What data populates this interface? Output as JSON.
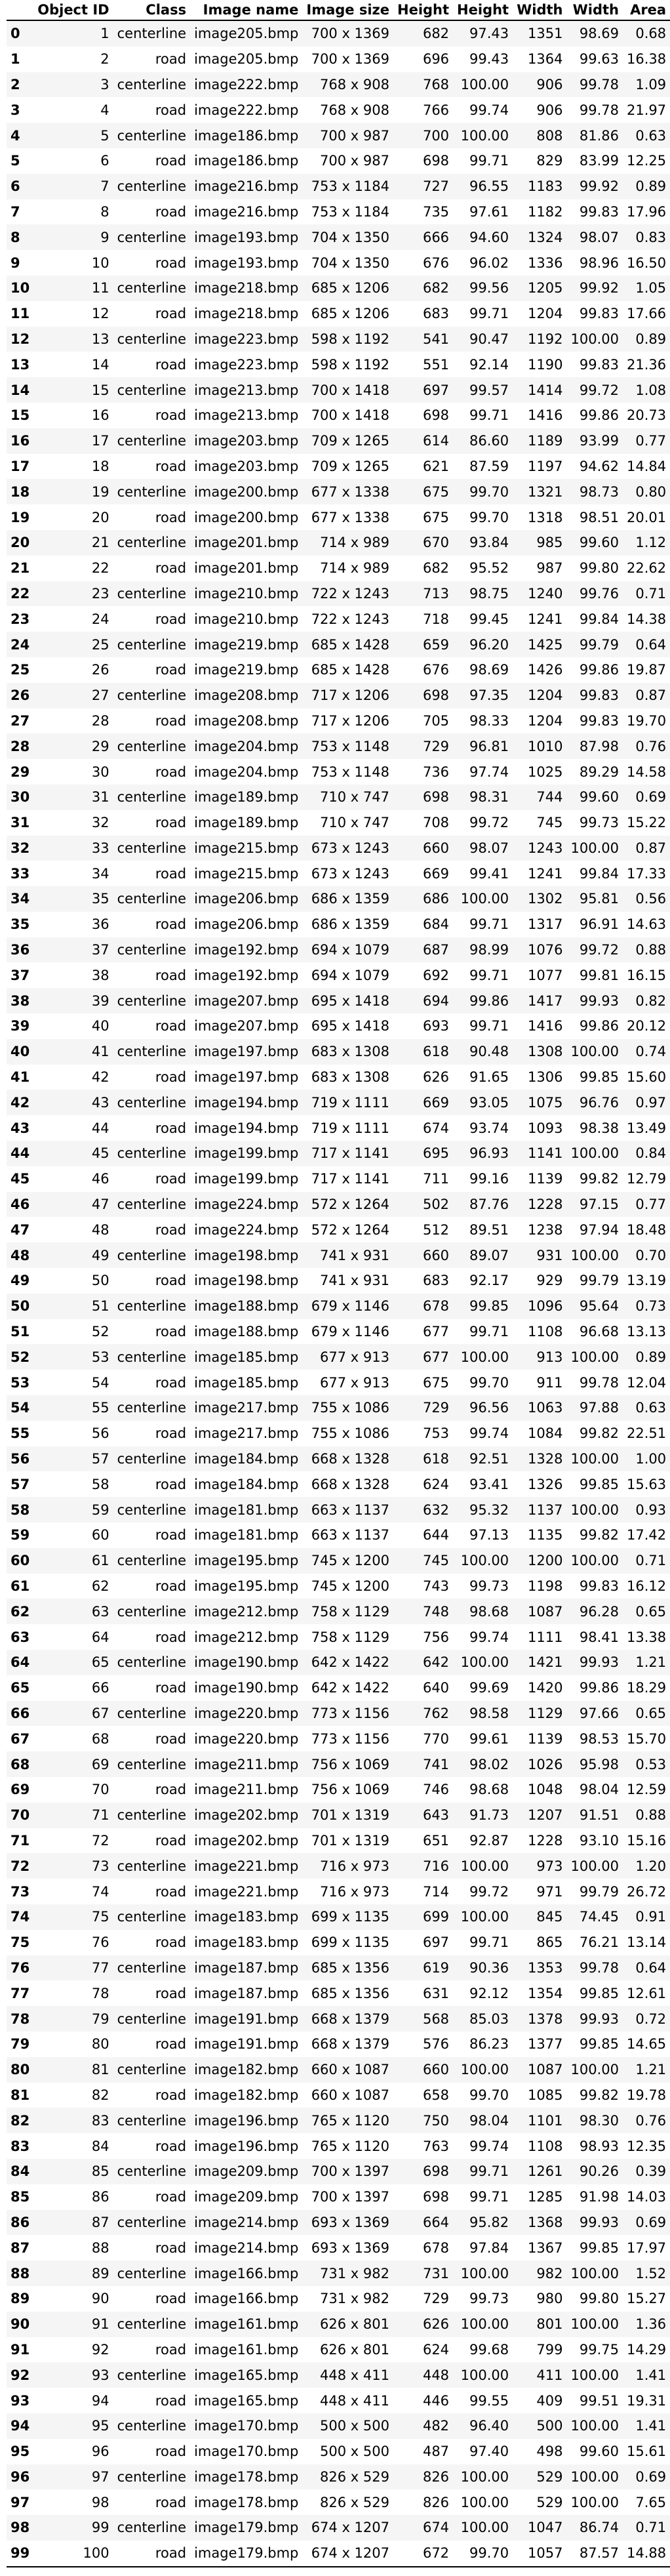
{
  "table": {
    "columns": [
      "",
      "Object ID",
      "Class",
      "Image name",
      "Image size",
      "Height",
      "Height",
      "Width",
      "Width",
      "Area"
    ],
    "rows": [
      [
        "0",
        "1",
        "centerline",
        "image205.bmp",
        "700 x 1369",
        "682",
        "97.43",
        "1351",
        "98.69",
        "0.68"
      ],
      [
        "1",
        "2",
        "road",
        "image205.bmp",
        "700 x 1369",
        "696",
        "99.43",
        "1364",
        "99.63",
        "16.38"
      ],
      [
        "2",
        "3",
        "centerline",
        "image222.bmp",
        "768 x 908",
        "768",
        "100.00",
        "906",
        "99.78",
        "1.09"
      ],
      [
        "3",
        "4",
        "road",
        "image222.bmp",
        "768 x 908",
        "766",
        "99.74",
        "906",
        "99.78",
        "21.97"
      ],
      [
        "4",
        "5",
        "centerline",
        "image186.bmp",
        "700 x 987",
        "700",
        "100.00",
        "808",
        "81.86",
        "0.63"
      ],
      [
        "5",
        "6",
        "road",
        "image186.bmp",
        "700 x 987",
        "698",
        "99.71",
        "829",
        "83.99",
        "12.25"
      ],
      [
        "6",
        "7",
        "centerline",
        "image216.bmp",
        "753 x 1184",
        "727",
        "96.55",
        "1183",
        "99.92",
        "0.89"
      ],
      [
        "7",
        "8",
        "road",
        "image216.bmp",
        "753 x 1184",
        "735",
        "97.61",
        "1182",
        "99.83",
        "17.96"
      ],
      [
        "8",
        "9",
        "centerline",
        "image193.bmp",
        "704 x 1350",
        "666",
        "94.60",
        "1324",
        "98.07",
        "0.83"
      ],
      [
        "9",
        "10",
        "road",
        "image193.bmp",
        "704 x 1350",
        "676",
        "96.02",
        "1336",
        "98.96",
        "16.50"
      ],
      [
        "10",
        "11",
        "centerline",
        "image218.bmp",
        "685 x 1206",
        "682",
        "99.56",
        "1205",
        "99.92",
        "1.05"
      ],
      [
        "11",
        "12",
        "road",
        "image218.bmp",
        "685 x 1206",
        "683",
        "99.71",
        "1204",
        "99.83",
        "17.66"
      ],
      [
        "12",
        "13",
        "centerline",
        "image223.bmp",
        "598 x 1192",
        "541",
        "90.47",
        "1192",
        "100.00",
        "0.89"
      ],
      [
        "13",
        "14",
        "road",
        "image223.bmp",
        "598 x 1192",
        "551",
        "92.14",
        "1190",
        "99.83",
        "21.36"
      ],
      [
        "14",
        "15",
        "centerline",
        "image213.bmp",
        "700 x 1418",
        "697",
        "99.57",
        "1414",
        "99.72",
        "1.08"
      ],
      [
        "15",
        "16",
        "road",
        "image213.bmp",
        "700 x 1418",
        "698",
        "99.71",
        "1416",
        "99.86",
        "20.73"
      ],
      [
        "16",
        "17",
        "centerline",
        "image203.bmp",
        "709 x 1265",
        "614",
        "86.60",
        "1189",
        "93.99",
        "0.77"
      ],
      [
        "17",
        "18",
        "road",
        "image203.bmp",
        "709 x 1265",
        "621",
        "87.59",
        "1197",
        "94.62",
        "14.84"
      ],
      [
        "18",
        "19",
        "centerline",
        "image200.bmp",
        "677 x 1338",
        "675",
        "99.70",
        "1321",
        "98.73",
        "0.80"
      ],
      [
        "19",
        "20",
        "road",
        "image200.bmp",
        "677 x 1338",
        "675",
        "99.70",
        "1318",
        "98.51",
        "20.01"
      ],
      [
        "20",
        "21",
        "centerline",
        "image201.bmp",
        "714 x 989",
        "670",
        "93.84",
        "985",
        "99.60",
        "1.12"
      ],
      [
        "21",
        "22",
        "road",
        "image201.bmp",
        "714 x 989",
        "682",
        "95.52",
        "987",
        "99.80",
        "22.62"
      ],
      [
        "22",
        "23",
        "centerline",
        "image210.bmp",
        "722 x 1243",
        "713",
        "98.75",
        "1240",
        "99.76",
        "0.71"
      ],
      [
        "23",
        "24",
        "road",
        "image210.bmp",
        "722 x 1243",
        "718",
        "99.45",
        "1241",
        "99.84",
        "14.38"
      ],
      [
        "24",
        "25",
        "centerline",
        "image219.bmp",
        "685 x 1428",
        "659",
        "96.20",
        "1425",
        "99.79",
        "0.64"
      ],
      [
        "25",
        "26",
        "road",
        "image219.bmp",
        "685 x 1428",
        "676",
        "98.69",
        "1426",
        "99.86",
        "19.87"
      ],
      [
        "26",
        "27",
        "centerline",
        "image208.bmp",
        "717 x 1206",
        "698",
        "97.35",
        "1204",
        "99.83",
        "0.87"
      ],
      [
        "27",
        "28",
        "road",
        "image208.bmp",
        "717 x 1206",
        "705",
        "98.33",
        "1204",
        "99.83",
        "19.70"
      ],
      [
        "28",
        "29",
        "centerline",
        "image204.bmp",
        "753 x 1148",
        "729",
        "96.81",
        "1010",
        "87.98",
        "0.76"
      ],
      [
        "29",
        "30",
        "road",
        "image204.bmp",
        "753 x 1148",
        "736",
        "97.74",
        "1025",
        "89.29",
        "14.58"
      ],
      [
        "30",
        "31",
        "centerline",
        "image189.bmp",
        "710 x 747",
        "698",
        "98.31",
        "744",
        "99.60",
        "0.69"
      ],
      [
        "31",
        "32",
        "road",
        "image189.bmp",
        "710 x 747",
        "708",
        "99.72",
        "745",
        "99.73",
        "15.22"
      ],
      [
        "32",
        "33",
        "centerline",
        "image215.bmp",
        "673 x 1243",
        "660",
        "98.07",
        "1243",
        "100.00",
        "0.87"
      ],
      [
        "33",
        "34",
        "road",
        "image215.bmp",
        "673 x 1243",
        "669",
        "99.41",
        "1241",
        "99.84",
        "17.33"
      ],
      [
        "34",
        "35",
        "centerline",
        "image206.bmp",
        "686 x 1359",
        "686",
        "100.00",
        "1302",
        "95.81",
        "0.56"
      ],
      [
        "35",
        "36",
        "road",
        "image206.bmp",
        "686 x 1359",
        "684",
        "99.71",
        "1317",
        "96.91",
        "14.63"
      ],
      [
        "36",
        "37",
        "centerline",
        "image192.bmp",
        "694 x 1079",
        "687",
        "98.99",
        "1076",
        "99.72",
        "0.88"
      ],
      [
        "37",
        "38",
        "road",
        "image192.bmp",
        "694 x 1079",
        "692",
        "99.71",
        "1077",
        "99.81",
        "16.15"
      ],
      [
        "38",
        "39",
        "centerline",
        "image207.bmp",
        "695 x 1418",
        "694",
        "99.86",
        "1417",
        "99.93",
        "0.82"
      ],
      [
        "39",
        "40",
        "road",
        "image207.bmp",
        "695 x 1418",
        "693",
        "99.71",
        "1416",
        "99.86",
        "20.12"
      ],
      [
        "40",
        "41",
        "centerline",
        "image197.bmp",
        "683 x 1308",
        "618",
        "90.48",
        "1308",
        "100.00",
        "0.74"
      ],
      [
        "41",
        "42",
        "road",
        "image197.bmp",
        "683 x 1308",
        "626",
        "91.65",
        "1306",
        "99.85",
        "15.60"
      ],
      [
        "42",
        "43",
        "centerline",
        "image194.bmp",
        "719 x 1111",
        "669",
        "93.05",
        "1075",
        "96.76",
        "0.97"
      ],
      [
        "43",
        "44",
        "road",
        "image194.bmp",
        "719 x 1111",
        "674",
        "93.74",
        "1093",
        "98.38",
        "13.49"
      ],
      [
        "44",
        "45",
        "centerline",
        "image199.bmp",
        "717 x 1141",
        "695",
        "96.93",
        "1141",
        "100.00",
        "0.84"
      ],
      [
        "45",
        "46",
        "road",
        "image199.bmp",
        "717 x 1141",
        "711",
        "99.16",
        "1139",
        "99.82",
        "12.79"
      ],
      [
        "46",
        "47",
        "centerline",
        "image224.bmp",
        "572 x 1264",
        "502",
        "87.76",
        "1228",
        "97.15",
        "0.77"
      ],
      [
        "47",
        "48",
        "road",
        "image224.bmp",
        "572 x 1264",
        "512",
        "89.51",
        "1238",
        "97.94",
        "18.48"
      ],
      [
        "48",
        "49",
        "centerline",
        "image198.bmp",
        "741 x 931",
        "660",
        "89.07",
        "931",
        "100.00",
        "0.70"
      ],
      [
        "49",
        "50",
        "road",
        "image198.bmp",
        "741 x 931",
        "683",
        "92.17",
        "929",
        "99.79",
        "13.19"
      ],
      [
        "50",
        "51",
        "centerline",
        "image188.bmp",
        "679 x 1146",
        "678",
        "99.85",
        "1096",
        "95.64",
        "0.73"
      ],
      [
        "51",
        "52",
        "road",
        "image188.bmp",
        "679 x 1146",
        "677",
        "99.71",
        "1108",
        "96.68",
        "13.13"
      ],
      [
        "52",
        "53",
        "centerline",
        "image185.bmp",
        "677 x 913",
        "677",
        "100.00",
        "913",
        "100.00",
        "0.89"
      ],
      [
        "53",
        "54",
        "road",
        "image185.bmp",
        "677 x 913",
        "675",
        "99.70",
        "911",
        "99.78",
        "12.04"
      ],
      [
        "54",
        "55",
        "centerline",
        "image217.bmp",
        "755 x 1086",
        "729",
        "96.56",
        "1063",
        "97.88",
        "0.63"
      ],
      [
        "55",
        "56",
        "road",
        "image217.bmp",
        "755 x 1086",
        "753",
        "99.74",
        "1084",
        "99.82",
        "22.51"
      ],
      [
        "56",
        "57",
        "centerline",
        "image184.bmp",
        "668 x 1328",
        "618",
        "92.51",
        "1328",
        "100.00",
        "1.00"
      ],
      [
        "57",
        "58",
        "road",
        "image184.bmp",
        "668 x 1328",
        "624",
        "93.41",
        "1326",
        "99.85",
        "15.63"
      ],
      [
        "58",
        "59",
        "centerline",
        "image181.bmp",
        "663 x 1137",
        "632",
        "95.32",
        "1137",
        "100.00",
        "0.93"
      ],
      [
        "59",
        "60",
        "road",
        "image181.bmp",
        "663 x 1137",
        "644",
        "97.13",
        "1135",
        "99.82",
        "17.42"
      ],
      [
        "60",
        "61",
        "centerline",
        "image195.bmp",
        "745 x 1200",
        "745",
        "100.00",
        "1200",
        "100.00",
        "0.71"
      ],
      [
        "61",
        "62",
        "road",
        "image195.bmp",
        "745 x 1200",
        "743",
        "99.73",
        "1198",
        "99.83",
        "16.12"
      ],
      [
        "62",
        "63",
        "centerline",
        "image212.bmp",
        "758 x 1129",
        "748",
        "98.68",
        "1087",
        "96.28",
        "0.65"
      ],
      [
        "63",
        "64",
        "road",
        "image212.bmp",
        "758 x 1129",
        "756",
        "99.74",
        "1111",
        "98.41",
        "13.38"
      ],
      [
        "64",
        "65",
        "centerline",
        "image190.bmp",
        "642 x 1422",
        "642",
        "100.00",
        "1421",
        "99.93",
        "1.21"
      ],
      [
        "65",
        "66",
        "road",
        "image190.bmp",
        "642 x 1422",
        "640",
        "99.69",
        "1420",
        "99.86",
        "18.29"
      ],
      [
        "66",
        "67",
        "centerline",
        "image220.bmp",
        "773 x 1156",
        "762",
        "98.58",
        "1129",
        "97.66",
        "0.65"
      ],
      [
        "67",
        "68",
        "road",
        "image220.bmp",
        "773 x 1156",
        "770",
        "99.61",
        "1139",
        "98.53",
        "15.70"
      ],
      [
        "68",
        "69",
        "centerline",
        "image211.bmp",
        "756 x 1069",
        "741",
        "98.02",
        "1026",
        "95.98",
        "0.53"
      ],
      [
        "69",
        "70",
        "road",
        "image211.bmp",
        "756 x 1069",
        "746",
        "98.68",
        "1048",
        "98.04",
        "12.59"
      ],
      [
        "70",
        "71",
        "centerline",
        "image202.bmp",
        "701 x 1319",
        "643",
        "91.73",
        "1207",
        "91.51",
        "0.88"
      ],
      [
        "71",
        "72",
        "road",
        "image202.bmp",
        "701 x 1319",
        "651",
        "92.87",
        "1228",
        "93.10",
        "15.16"
      ],
      [
        "72",
        "73",
        "centerline",
        "image221.bmp",
        "716 x 973",
        "716",
        "100.00",
        "973",
        "100.00",
        "1.20"
      ],
      [
        "73",
        "74",
        "road",
        "image221.bmp",
        "716 x 973",
        "714",
        "99.72",
        "971",
        "99.79",
        "26.72"
      ],
      [
        "74",
        "75",
        "centerline",
        "image183.bmp",
        "699 x 1135",
        "699",
        "100.00",
        "845",
        "74.45",
        "0.91"
      ],
      [
        "75",
        "76",
        "road",
        "image183.bmp",
        "699 x 1135",
        "697",
        "99.71",
        "865",
        "76.21",
        "13.14"
      ],
      [
        "76",
        "77",
        "centerline",
        "image187.bmp",
        "685 x 1356",
        "619",
        "90.36",
        "1353",
        "99.78",
        "0.64"
      ],
      [
        "77",
        "78",
        "road",
        "image187.bmp",
        "685 x 1356",
        "631",
        "92.12",
        "1354",
        "99.85",
        "12.61"
      ],
      [
        "78",
        "79",
        "centerline",
        "image191.bmp",
        "668 x 1379",
        "568",
        "85.03",
        "1378",
        "99.93",
        "0.72"
      ],
      [
        "79",
        "80",
        "road",
        "image191.bmp",
        "668 x 1379",
        "576",
        "86.23",
        "1377",
        "99.85",
        "14.65"
      ],
      [
        "80",
        "81",
        "centerline",
        "image182.bmp",
        "660 x 1087",
        "660",
        "100.00",
        "1087",
        "100.00",
        "1.21"
      ],
      [
        "81",
        "82",
        "road",
        "image182.bmp",
        "660 x 1087",
        "658",
        "99.70",
        "1085",
        "99.82",
        "19.78"
      ],
      [
        "82",
        "83",
        "centerline",
        "image196.bmp",
        "765 x 1120",
        "750",
        "98.04",
        "1101",
        "98.30",
        "0.76"
      ],
      [
        "83",
        "84",
        "road",
        "image196.bmp",
        "765 x 1120",
        "763",
        "99.74",
        "1108",
        "98.93",
        "12.35"
      ],
      [
        "84",
        "85",
        "centerline",
        "image209.bmp",
        "700 x 1397",
        "698",
        "99.71",
        "1261",
        "90.26",
        "0.39"
      ],
      [
        "85",
        "86",
        "road",
        "image209.bmp",
        "700 x 1397",
        "698",
        "99.71",
        "1285",
        "91.98",
        "14.03"
      ],
      [
        "86",
        "87",
        "centerline",
        "image214.bmp",
        "693 x 1369",
        "664",
        "95.82",
        "1368",
        "99.93",
        "0.69"
      ],
      [
        "87",
        "88",
        "road",
        "image214.bmp",
        "693 x 1369",
        "678",
        "97.84",
        "1367",
        "99.85",
        "17.97"
      ],
      [
        "88",
        "89",
        "centerline",
        "image166.bmp",
        "731 x 982",
        "731",
        "100.00",
        "982",
        "100.00",
        "1.52"
      ],
      [
        "89",
        "90",
        "road",
        "image166.bmp",
        "731 x 982",
        "729",
        "99.73",
        "980",
        "99.80",
        "15.27"
      ],
      [
        "90",
        "91",
        "centerline",
        "image161.bmp",
        "626 x 801",
        "626",
        "100.00",
        "801",
        "100.00",
        "1.36"
      ],
      [
        "91",
        "92",
        "road",
        "image161.bmp",
        "626 x 801",
        "624",
        "99.68",
        "799",
        "99.75",
        "14.29"
      ],
      [
        "92",
        "93",
        "centerline",
        "image165.bmp",
        "448 x 411",
        "448",
        "100.00",
        "411",
        "100.00",
        "1.41"
      ],
      [
        "93",
        "94",
        "road",
        "image165.bmp",
        "448 x 411",
        "446",
        "99.55",
        "409",
        "99.51",
        "19.31"
      ],
      [
        "94",
        "95",
        "centerline",
        "image170.bmp",
        "500 x 500",
        "482",
        "96.40",
        "500",
        "100.00",
        "1.41"
      ],
      [
        "95",
        "96",
        "road",
        "image170.bmp",
        "500 x 500",
        "487",
        "97.40",
        "498",
        "99.60",
        "15.61"
      ],
      [
        "96",
        "97",
        "centerline",
        "image178.bmp",
        "826 x 529",
        "826",
        "100.00",
        "529",
        "100.00",
        "0.69"
      ],
      [
        "97",
        "98",
        "road",
        "image178.bmp",
        "826 x 529",
        "826",
        "100.00",
        "529",
        "100.00",
        "7.65"
      ],
      [
        "98",
        "99",
        "centerline",
        "image179.bmp",
        "674 x 1207",
        "674",
        "100.00",
        "1047",
        "86.74",
        "0.71"
      ],
      [
        "99",
        "100",
        "road",
        "image179.bmp",
        "674 x 1207",
        "672",
        "99.70",
        "1057",
        "87.57",
        "14.88"
      ]
    ]
  }
}
